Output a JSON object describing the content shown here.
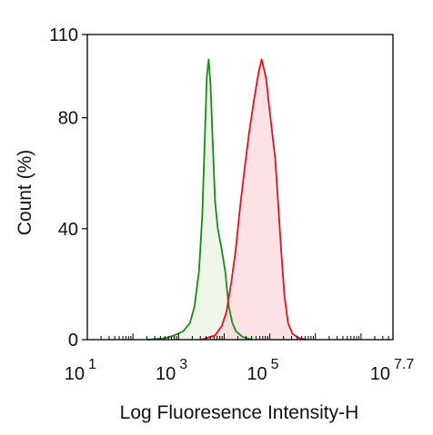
{
  "chart_data": {
    "type": "histogram",
    "xlabel": "Log Fluoresence Intensity-H",
    "ylabel": "Count  (%)",
    "x_scale": "log10",
    "xlim": [
      1,
      7.7
    ],
    "ylim": [
      0,
      110
    ],
    "x_ticks": [
      {
        "base": "10",
        "exp": "1",
        "value": 1
      },
      {
        "base": "10",
        "exp": "3",
        "value": 3
      },
      {
        "base": "10",
        "exp": "5",
        "value": 5
      },
      {
        "base": "10",
        "exp": "7.7",
        "value": 7.7
      }
    ],
    "y_ticks": [
      0,
      40,
      80,
      110
    ],
    "grid": false,
    "series": [
      {
        "color": "#1a8a1a",
        "fill": "#e8f2e2",
        "points": [
          [
            2.3,
            0
          ],
          [
            2.7,
            0.5
          ],
          [
            2.9,
            1.5
          ],
          [
            3.1,
            3
          ],
          [
            3.25,
            6
          ],
          [
            3.35,
            12
          ],
          [
            3.45,
            25
          ],
          [
            3.52,
            45
          ],
          [
            3.57,
            70
          ],
          [
            3.62,
            95
          ],
          [
            3.66,
            101
          ],
          [
            3.7,
            92
          ],
          [
            3.74,
            75
          ],
          [
            3.8,
            50
          ],
          [
            3.86,
            40
          ],
          [
            3.94,
            33
          ],
          [
            4.02,
            25
          ],
          [
            4.1,
            12
          ],
          [
            4.18,
            6
          ],
          [
            4.26,
            3
          ],
          [
            4.4,
            1
          ],
          [
            4.6,
            0
          ]
        ]
      },
      {
        "color": "#e0141e",
        "fill": "#fcd8dc",
        "points": [
          [
            3.5,
            0
          ],
          [
            3.8,
            1.5
          ],
          [
            3.95,
            5
          ],
          [
            4.05,
            10
          ],
          [
            4.15,
            20
          ],
          [
            4.25,
            32
          ],
          [
            4.35,
            48
          ],
          [
            4.45,
            62
          ],
          [
            4.55,
            75
          ],
          [
            4.65,
            86
          ],
          [
            4.75,
            96
          ],
          [
            4.82,
            101
          ],
          [
            4.88,
            97
          ],
          [
            4.92,
            94
          ],
          [
            4.98,
            85
          ],
          [
            5.05,
            75
          ],
          [
            5.12,
            65
          ],
          [
            5.18,
            50
          ],
          [
            5.25,
            32
          ],
          [
            5.32,
            16
          ],
          [
            5.4,
            6
          ],
          [
            5.5,
            2
          ],
          [
            5.65,
            0.5
          ],
          [
            5.8,
            0
          ]
        ]
      }
    ]
  }
}
